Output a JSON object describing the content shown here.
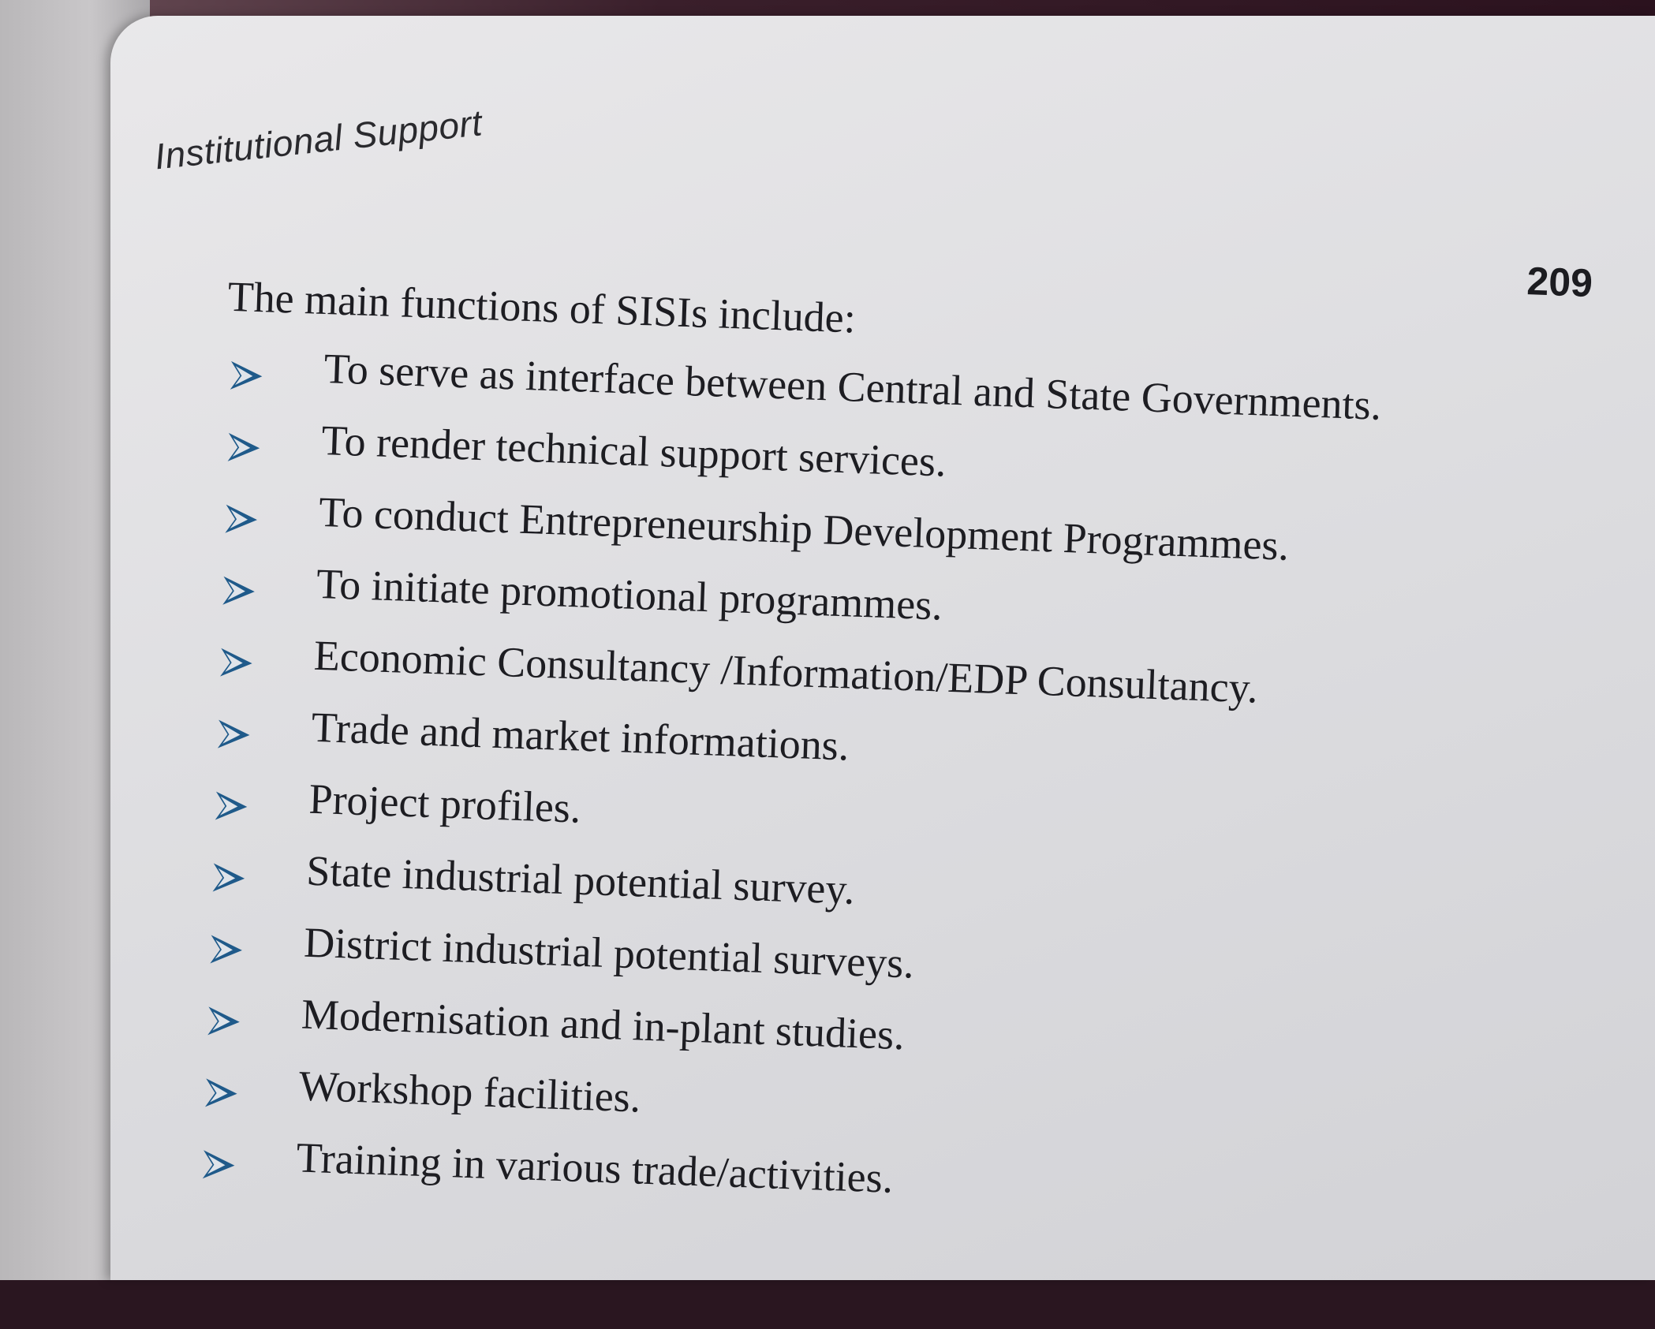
{
  "page": {
    "running_head": "Institutional Support",
    "page_number": "209",
    "intro": "The main functions of SISIs include:",
    "bullet_icon": "arrowhead-bullet-icon",
    "bullet_color": "#1f5a8a",
    "items": [
      "To serve as interface between Central and State Governments.",
      "To render technical support services.",
      "To conduct Entrepreneurship Development Programmes.",
      "To initiate promotional programmes.",
      "Economic Consultancy /Information/EDP Consultancy.",
      "Trade and market informations.",
      "Project profiles.",
      "State industrial potential survey.",
      "District industrial potential surveys.",
      "Modernisation and in-plant studies.",
      "Workshop facilities.",
      "Training in various trade/activities."
    ]
  }
}
